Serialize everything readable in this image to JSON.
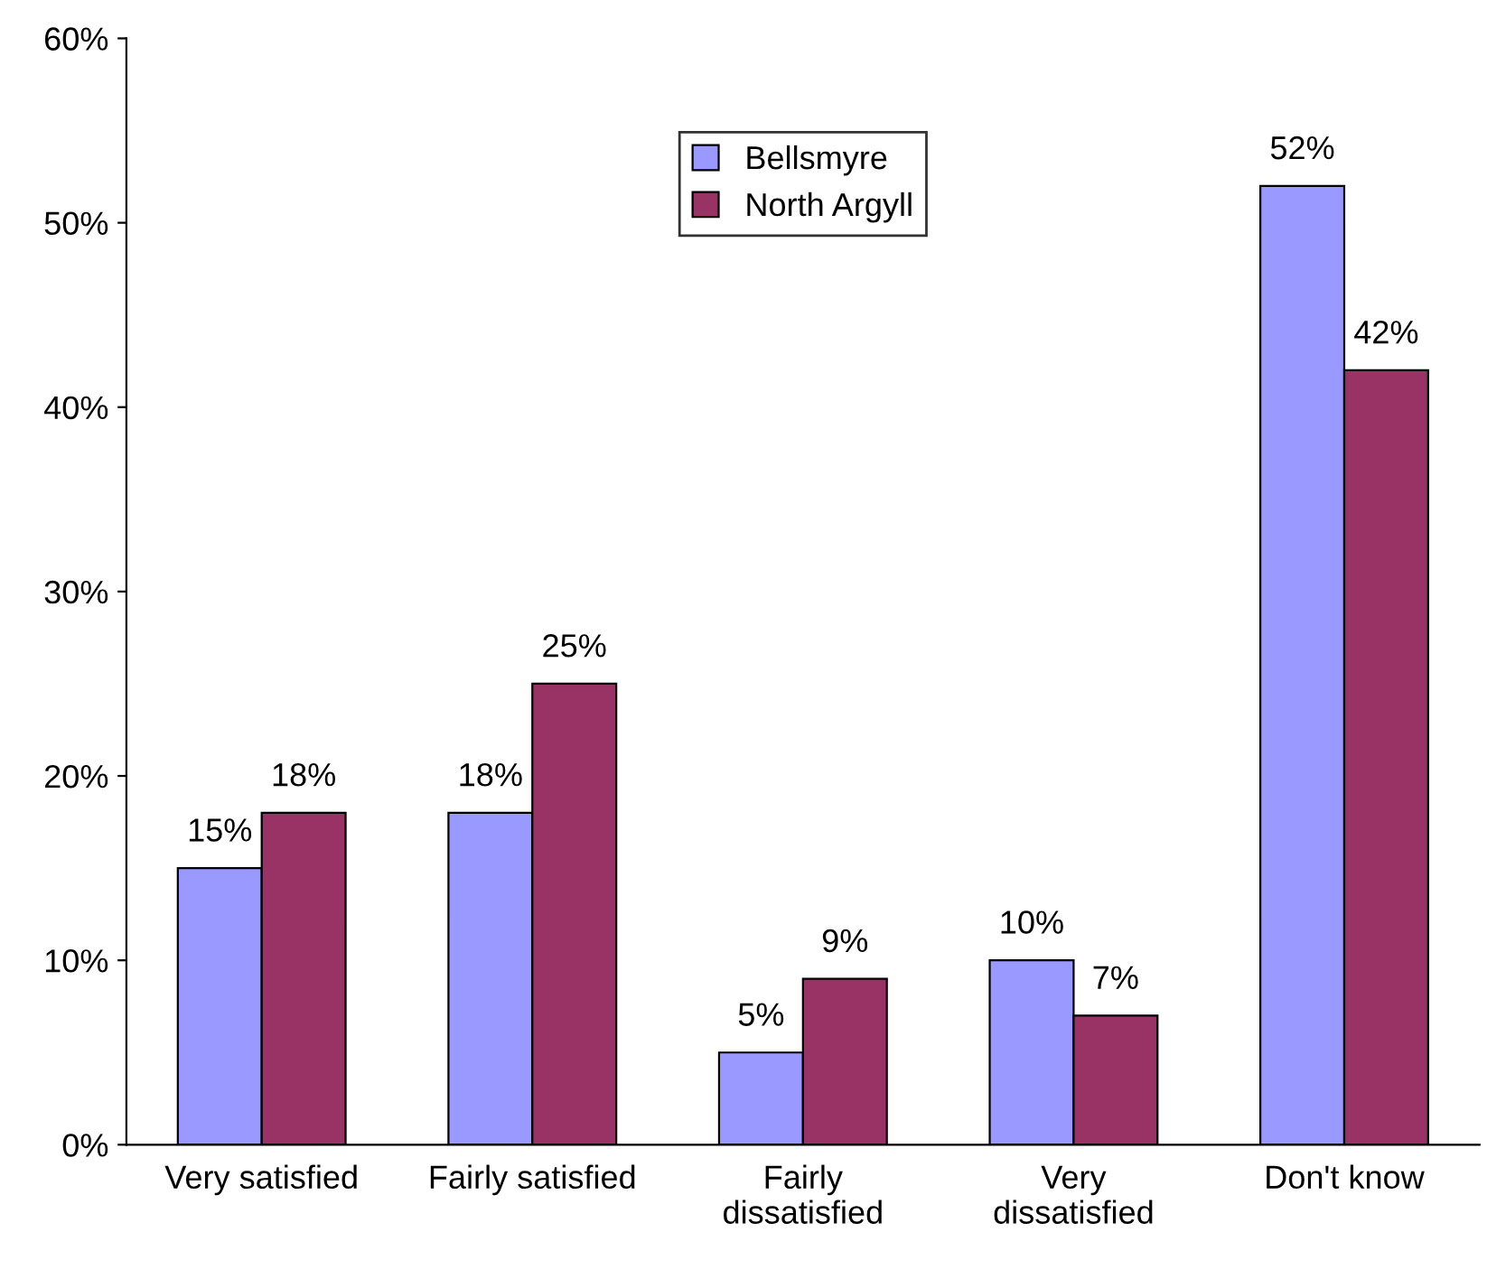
{
  "chart_data": {
    "type": "bar",
    "categories": [
      "Very satisfied",
      "Fairly satisfied",
      "Fairly\ndissatisfied",
      "Very\ndissatisfied",
      "Don't know"
    ],
    "series": [
      {
        "name": "Bellsmyre",
        "color": "#9999ff",
        "values": [
          15,
          18,
          5,
          10,
          52
        ],
        "value_labels": [
          "15%",
          "18%",
          "5%",
          "10%",
          "52%"
        ]
      },
      {
        "name": "North Argyll",
        "color": "#993366",
        "values": [
          18,
          25,
          9,
          7,
          42
        ],
        "value_labels": [
          "18%",
          "25%",
          "9%",
          "7%",
          "42%"
        ]
      }
    ],
    "ylim": [
      0,
      60
    ],
    "yticks": [
      {
        "value": 0,
        "label": "0%"
      },
      {
        "value": 10,
        "label": "10%"
      },
      {
        "value": 20,
        "label": "20%"
      },
      {
        "value": 30,
        "label": "30%"
      },
      {
        "value": 40,
        "label": "40%"
      },
      {
        "value": 50,
        "label": "50%"
      },
      {
        "value": 60,
        "label": "60%"
      }
    ],
    "grid": false,
    "legend": "top"
  }
}
